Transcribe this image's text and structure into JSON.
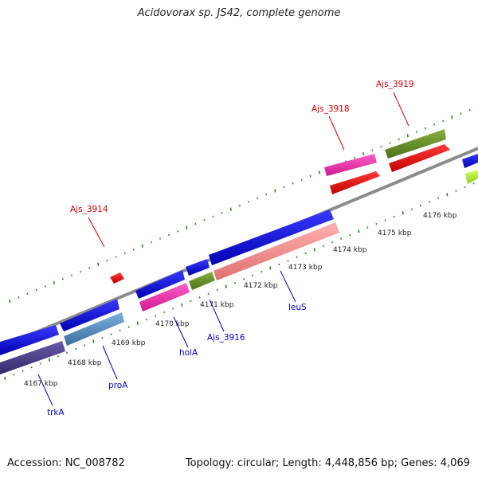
{
  "title": "Acidovorax sp. JS42, complete genome",
  "footer": {
    "accession": "Accession: NC_008782",
    "stats": "Topology: circular; Length: 4,448,856 bp; Genes: 4,069"
  },
  "colors": {
    "backbone": "#8c8c8c",
    "tick": "#2e8b22",
    "label_red": "#cc0000",
    "label_blue": "#0000cc"
  },
  "scale_labels": [
    "4167 kbp",
    "4168 kbp",
    "4169 kbp",
    "4170 kbp",
    "4171 kbp",
    "4172 kbp",
    "4173 kbp",
    "4174 kbp",
    "4175 kbp",
    "4176 kbp"
  ],
  "gene_labels": [
    {
      "text": "Ajs_3914",
      "strand": "forward"
    },
    {
      "text": "Ajs_3918",
      "strand": "forward"
    },
    {
      "text": "Ajs_3919",
      "strand": "forward"
    },
    {
      "text": "trkA",
      "strand": "reverse"
    },
    {
      "text": "proA",
      "strand": "reverse"
    },
    {
      "text": "holA",
      "strand": "reverse"
    },
    {
      "text": "Ajs_3916",
      "strand": "reverse"
    },
    {
      "text": "leuS",
      "strand": "reverse"
    }
  ],
  "feature_colors": [
    "blue",
    "darkslateblue",
    "steelblue",
    "deeppink",
    "olivedrab",
    "lightcoral",
    "red",
    "greenyellow"
  ]
}
